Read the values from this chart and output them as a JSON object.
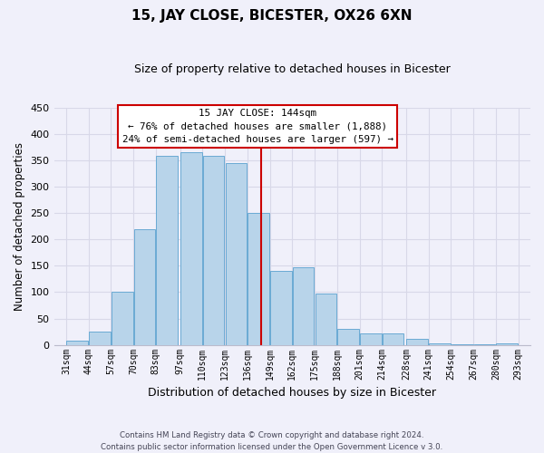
{
  "title": "15, JAY CLOSE, BICESTER, OX26 6XN",
  "subtitle": "Size of property relative to detached houses in Bicester",
  "xlabel": "Distribution of detached houses by size in Bicester",
  "ylabel": "Number of detached properties",
  "footer_lines": [
    "Contains HM Land Registry data © Crown copyright and database right 2024.",
    "Contains public sector information licensed under the Open Government Licence v 3.0."
  ],
  "bins_left": [
    31,
    44,
    57,
    70,
    83,
    97,
    110,
    123,
    136,
    149,
    162,
    175,
    188,
    201,
    214,
    228,
    241,
    254,
    267,
    280
  ],
  "bin_width": 13,
  "values": [
    8,
    25,
    100,
    220,
    358,
    365,
    358,
    345,
    250,
    140,
    148,
    97,
    30,
    22,
    22,
    11,
    2,
    1,
    1,
    2
  ],
  "bar_color": "#b8d4ea",
  "bar_edge_color": "#6aaad4",
  "reference_line_x": 144,
  "reference_line_color": "#cc0000",
  "box_text_line1": "15 JAY CLOSE: 144sqm",
  "box_text_line2": "← 76% of detached houses are smaller (1,888)",
  "box_text_line3": "24% of semi-detached houses are larger (597) →",
  "box_color": "white",
  "box_edge_color": "#cc0000",
  "ylim": [
    0,
    450
  ],
  "yticks": [
    0,
    50,
    100,
    150,
    200,
    250,
    300,
    350,
    400,
    450
  ],
  "tick_labels": [
    "31sqm",
    "44sqm",
    "57sqm",
    "70sqm",
    "83sqm",
    "97sqm",
    "110sqm",
    "123sqm",
    "136sqm",
    "149sqm",
    "162sqm",
    "175sqm",
    "188sqm",
    "201sqm",
    "214sqm",
    "228sqm",
    "241sqm",
    "254sqm",
    "267sqm",
    "280sqm",
    "293sqm"
  ],
  "grid_color": "#d8d8e8",
  "background_color": "#f0f0fa"
}
